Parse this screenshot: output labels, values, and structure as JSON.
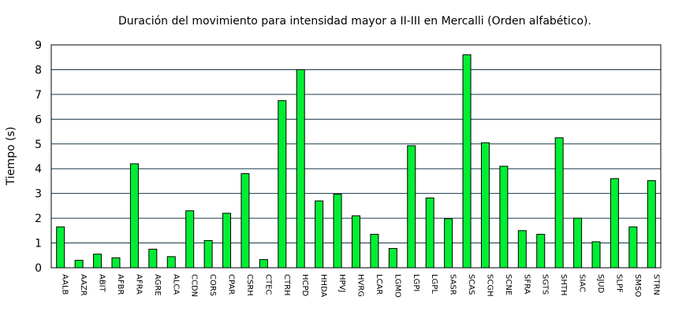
{
  "chart_data": {
    "type": "bar",
    "title": "Duración del movimiento para intensidad mayor a II-III en Mercalli (Orden alfabético).",
    "xlabel": "",
    "ylabel": "Tiempo (s)",
    "ylim": [
      0,
      9
    ],
    "yticks": [
      "0",
      "1",
      "2",
      "3",
      "4",
      "5",
      "6",
      "7",
      "8",
      "9"
    ],
    "grid": true,
    "legend": "none",
    "bar_color": "#00ee33",
    "bar_edge_color": "#000000",
    "grid_color": "#1a3a4a",
    "categories": [
      "AALB",
      "AAZR",
      "ABIT",
      "AFBR",
      "AFRA",
      "AGRE",
      "ALCA",
      "CCDN",
      "CORS",
      "CPAR",
      "CSRH",
      "CTEC",
      "CTRH",
      "HCPD",
      "HHDA",
      "HPVJ",
      "HVRG",
      "LCAR",
      "LGMO",
      "LGPI",
      "LGPL",
      "SASR",
      "SCAS",
      "SCGH",
      "SCNE",
      "SFRA",
      "SGTS",
      "SHTH",
      "SIAC",
      "SJUD",
      "SLPF",
      "SMSO",
      "STRN"
    ],
    "values": [
      1.65,
      0.3,
      0.55,
      0.4,
      4.2,
      0.75,
      0.45,
      2.3,
      1.1,
      2.2,
      3.8,
      0.33,
      6.75,
      8.0,
      2.7,
      2.97,
      2.1,
      1.35,
      0.78,
      4.93,
      2.82,
      1.98,
      8.6,
      5.05,
      4.1,
      1.5,
      1.35,
      5.25,
      2.0,
      1.05,
      3.6,
      1.65,
      3.52
    ]
  }
}
